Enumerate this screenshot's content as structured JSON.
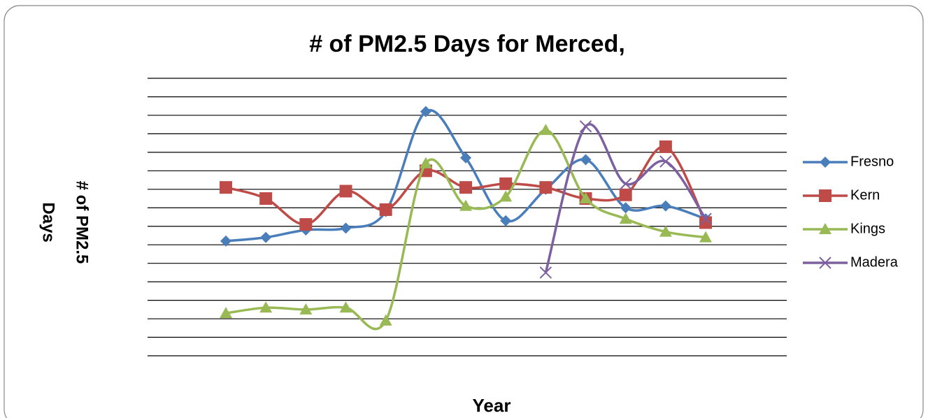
{
  "chart_data": {
    "type": "line",
    "title": "# of PM2.5 Days for Merced,",
    "ylabel": [
      "# of PM2.5",
      "Days"
    ],
    "xlabel": "Year",
    "categories": [
      null,
      null,
      null,
      null,
      null,
      null,
      null,
      null,
      null,
      null,
      null,
      null,
      null
    ],
    "series": [
      {
        "name": "Fresno",
        "color": "#4a7ebb",
        "marker": "diamond",
        "values": [
          6.2,
          6.4,
          6.8,
          6.9,
          7.8,
          13.2,
          10.7,
          7.3,
          9.0,
          10.6,
          8.0,
          8.1,
          7.4
        ]
      },
      {
        "name": "Kern",
        "color": "#be4b48",
        "marker": "square",
        "values": [
          9.1,
          8.5,
          7.1,
          8.9,
          7.9,
          10.0,
          9.1,
          9.3,
          9.1,
          8.5,
          8.7,
          11.3,
          7.2
        ]
      },
      {
        "name": "Kings",
        "color": "#98b954",
        "marker": "triangle",
        "values": [
          2.3,
          2.6,
          2.5,
          2.6,
          1.9,
          10.4,
          8.1,
          8.6,
          12.2,
          8.5,
          7.4,
          6.7,
          6.4
        ]
      },
      {
        "name": "Madera",
        "color": "#7d60a0",
        "marker": "x",
        "values": [
          null,
          null,
          null,
          null,
          null,
          null,
          null,
          null,
          4.5,
          12.4,
          9.3,
          10.5,
          7.4
        ]
      }
    ],
    "ylim": [
      0,
      15
    ],
    "yticks": [
      0,
      1,
      2,
      3,
      4,
      5,
      6,
      7,
      8,
      9,
      10,
      11,
      12,
      13,
      14,
      15
    ],
    "tick_labels": false,
    "grid": true,
    "smooth": true,
    "legend": "right"
  }
}
